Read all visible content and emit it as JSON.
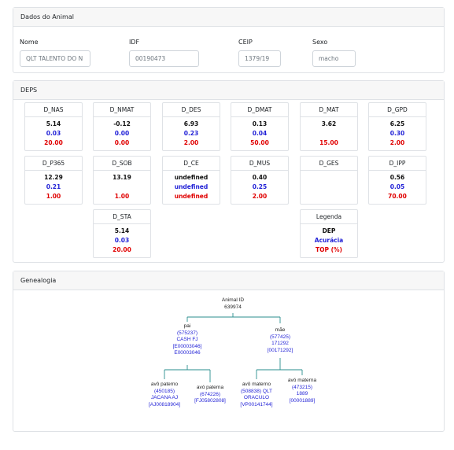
{
  "animal": {
    "header": "Dados do Animal",
    "fields": [
      {
        "label": "Nome",
        "value": "QLT TALENTO DO N"
      },
      {
        "label": "IDF",
        "value": "00190473"
      },
      {
        "label": "CEIP",
        "value": "1379/19"
      },
      {
        "label": "Sexo",
        "value": "macho"
      }
    ]
  },
  "deps": {
    "header": "DEPS",
    "boxes": [
      {
        "title": "D_NAS",
        "dep": "5.14",
        "acc": "0.03",
        "top": "20.00"
      },
      {
        "title": "D_NMAT",
        "dep": "-0.12",
        "acc": "0.00",
        "top": "0.00"
      },
      {
        "title": "D_DES",
        "dep": "6.93",
        "acc": "0.23",
        "top": "2.00"
      },
      {
        "title": "D_DMAT",
        "dep": "0.13",
        "acc": "0.04",
        "top": "50.00"
      },
      {
        "title": "D_MAT",
        "dep": "3.62",
        "acc": "",
        "top": "15.00"
      },
      {
        "title": "D_GPD",
        "dep": "6.25",
        "acc": "0.30",
        "top": "2.00"
      },
      {
        "title": "D_P365",
        "dep": "12.29",
        "acc": "0.21",
        "top": "1.00"
      },
      {
        "title": "D_SOB",
        "dep": "13.19",
        "acc": "",
        "top": "1.00"
      },
      {
        "title": "D_CE",
        "dep": "undefined",
        "acc": "undefined",
        "top": "undefined"
      },
      {
        "title": "D_MUS",
        "dep": "0.40",
        "acc": "0.25",
        "top": "2.00"
      },
      {
        "title": "D_GES",
        "dep": "",
        "acc": "",
        "top": ""
      },
      {
        "title": "D_IPP",
        "dep": "0.56",
        "acc": "0.05",
        "top": "70.00"
      },
      {
        "title": "D_STA",
        "dep": "5.14",
        "acc": "0.03",
        "top": "20.00"
      }
    ],
    "legend": {
      "title": "Legenda",
      "dep": "DEP",
      "acc": "Acurácia",
      "top": "TOP (%)"
    }
  },
  "genealogy": {
    "header": "Genealogia",
    "root": {
      "label": "Animal ID",
      "id": "639974"
    },
    "father": {
      "label": "pai",
      "lines": [
        "(575237)",
        "CASH FJ",
        "[E00003046]",
        "E00003046"
      ]
    },
    "mother": {
      "label": "mãe",
      "lines": [
        "(577425)",
        "171292",
        "[00171292]"
      ]
    },
    "pat_grandfather": {
      "label": "avô paterno",
      "lines": [
        "(450185)",
        "JACANA AJ",
        "[AJ00818904]"
      ]
    },
    "pat_grandmother": {
      "label": "avó paterna",
      "lines": [
        "(674226)",
        "[FJ05802808]"
      ]
    },
    "mat_grandfather": {
      "label": "avô materno",
      "lines": [
        "(508838) QLT",
        "ORACULO",
        "[VP00141744]"
      ]
    },
    "mat_grandmother": {
      "label": "avó materna",
      "lines": [
        "(473215)",
        "1889",
        "[00001889]"
      ]
    }
  }
}
